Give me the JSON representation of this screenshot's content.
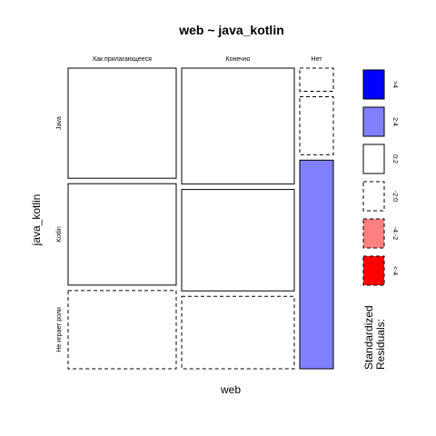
{
  "chart_data": {
    "type": "mosaic",
    "title": "web ~ java_kotlin",
    "xlabel": "web",
    "ylabel": "java_kotlin",
    "columns": [
      "Как прилагающееся",
      "Конечно",
      "Нет"
    ],
    "rows": [
      "Java",
      "Kotlin",
      "Не играет роли"
    ],
    "cells": [
      {
        "col": "Как прилагающееся",
        "row": "Java",
        "proportion": 0.38,
        "residual_class": "0:2"
      },
      {
        "col": "Как прилагающееся",
        "row": "Kotlin",
        "proportion": 0.35,
        "residual_class": "0:2"
      },
      {
        "col": "Как прилагающееся",
        "row": "Не играет роли",
        "proportion": 0.27,
        "residual_class": "-2:0"
      },
      {
        "col": "Конечно",
        "row": "Java",
        "proportion": 0.4,
        "residual_class": "0:2"
      },
      {
        "col": "Конечно",
        "row": "Kotlin",
        "proportion": 0.35,
        "residual_class": "0:2"
      },
      {
        "col": "Конечно",
        "row": "Не играет роли",
        "proportion": 0.25,
        "residual_class": "-2:0"
      },
      {
        "col": "Нет",
        "row": "Java",
        "proportion": 0.08,
        "residual_class": "-2:0"
      },
      {
        "col": "Нет",
        "row": "Kotlin",
        "proportion": 0.2,
        "residual_class": "-2:0"
      },
      {
        "col": "Нет",
        "row": "Не играет роли",
        "proportion": 0.72,
        "residual_class": "2:4"
      }
    ],
    "column_widths": [
      0.4,
      0.4,
      0.12
    ],
    "legend": {
      "title": "Standardized\nResiduals:",
      "placement": "right",
      "items": [
        {
          "label": ">4",
          "color": "#0000ff",
          "dashed": false
        },
        {
          "label": "2:4",
          "color": "#8080ff",
          "dashed": false
        },
        {
          "label": "0:2",
          "color": "#ffffff",
          "dashed": false
        },
        {
          "label": "-2:0",
          "color": "#ffffff",
          "dashed": true
        },
        {
          "label": "-4:-2",
          "color": "#ff8080",
          "dashed": true
        },
        {
          "label": "<-4",
          "color": "#ff0000",
          "dashed": true
        }
      ]
    }
  }
}
